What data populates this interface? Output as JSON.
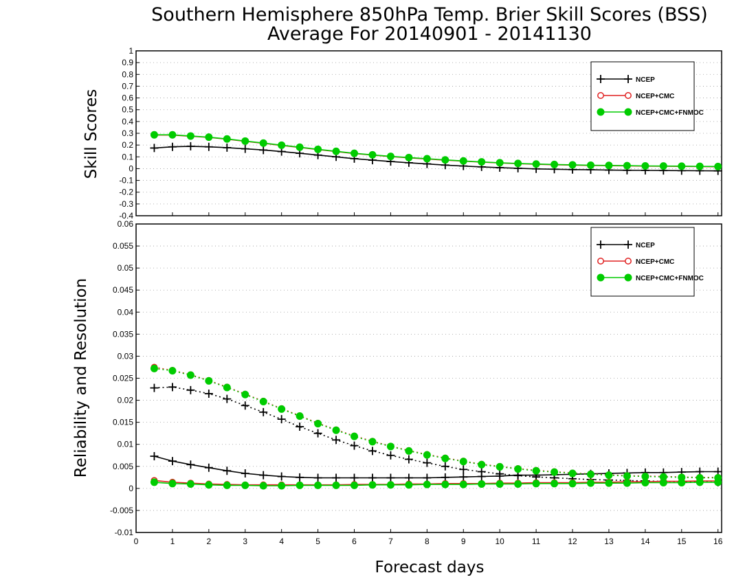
{
  "title_line1": "Southern Hemisphere 850hPa Temp. Brier Skill Scores (BSS)",
  "title_line2": "Average For 20140901 - 20141130",
  "xlabel": "Forecast days",
  "legend_entries": [
    "NCEP",
    "NCEP+CMC",
    "NCEP+CMC+FNMOC"
  ],
  "colors": {
    "ncep": "#000000",
    "ncep_cmc": "#e02020",
    "ncep_cmc_fnmoc": "#00cc00"
  },
  "chart_data": [
    {
      "type": "line",
      "title": "Southern Hemisphere 850hPa Temp. Brier Skill Scores (BSS)",
      "subtitle": "Average For 20140901 - 20141130",
      "ylabel": "Skill Scores",
      "xlim": [
        0,
        16.1
      ],
      "ylim": [
        -0.4,
        1
      ],
      "x_ticks": [
        0,
        1,
        2,
        3,
        4,
        5,
        6,
        7,
        8,
        9,
        10,
        11,
        12,
        13,
        14,
        15,
        16
      ],
      "y_ticks": [
        "-0.4",
        "-0.3",
        "-0.2",
        "-0.1",
        "0",
        "0.1",
        "0.2",
        "0.3",
        "0.4",
        "0.5",
        "0.6",
        "0.7",
        "0.8",
        "0.9",
        "1"
      ],
      "grid": true,
      "legend_position": "top-right",
      "x": [
        0.5,
        1,
        1.5,
        2,
        2.5,
        3,
        3.5,
        4,
        4.5,
        5,
        5.5,
        6,
        6.5,
        7,
        7.5,
        8,
        8.5,
        9,
        9.5,
        10,
        10.5,
        11,
        11.5,
        12,
        12.5,
        13,
        13.5,
        14,
        14.5,
        15,
        15.5,
        16
      ],
      "series": [
        {
          "name": "NCEP",
          "marker": "plus",
          "style": "solid",
          "values": [
            0.175,
            0.185,
            0.19,
            0.185,
            0.178,
            0.168,
            0.158,
            0.145,
            0.13,
            0.115,
            0.1,
            0.085,
            0.072,
            0.06,
            0.05,
            0.04,
            0.03,
            0.022,
            0.015,
            0.008,
            0.003,
            -0.002,
            -0.005,
            -0.008,
            -0.01,
            -0.012,
            -0.014,
            -0.015,
            -0.016,
            -0.017,
            -0.018,
            -0.019
          ]
        },
        {
          "name": "NCEP+CMC",
          "marker": "open-circle",
          "style": "solid",
          "values": [
            0.285,
            0.285,
            0.275,
            0.265,
            0.25,
            0.232,
            0.215,
            0.197,
            0.18,
            0.162,
            0.145,
            0.128,
            0.115,
            0.102,
            0.092,
            0.082,
            0.072,
            0.063,
            0.055,
            0.048,
            0.042,
            0.037,
            0.033,
            0.03,
            0.027,
            0.025,
            0.023,
            0.021,
            0.02,
            0.019,
            0.017,
            0.016
          ]
        },
        {
          "name": "NCEP+CMC+FNMOC",
          "marker": "filled-circle",
          "style": "solid",
          "values": [
            0.287,
            0.287,
            0.277,
            0.267,
            0.252,
            0.234,
            0.217,
            0.199,
            0.182,
            0.164,
            0.147,
            0.13,
            0.117,
            0.104,
            0.094,
            0.084,
            0.074,
            0.065,
            0.057,
            0.05,
            0.044,
            0.039,
            0.035,
            0.032,
            0.029,
            0.027,
            0.025,
            0.023,
            0.022,
            0.021,
            0.019,
            0.018
          ]
        }
      ]
    },
    {
      "type": "line",
      "ylabel": "Reliability and Resolution",
      "xlabel": "Forecast days",
      "xlim": [
        0,
        16.1
      ],
      "ylim": [
        -0.01,
        0.06
      ],
      "x_ticks": [
        0,
        1,
        2,
        3,
        4,
        5,
        6,
        7,
        8,
        9,
        10,
        11,
        12,
        13,
        14,
        15,
        16
      ],
      "y_ticks": [
        "-0.01",
        "-0.005",
        "0",
        "0.005",
        "0.01",
        "0.015",
        "0.02",
        "0.025",
        "0.03",
        "0.035",
        "0.04",
        "0.045",
        "0.05",
        "0.055",
        "0.06"
      ],
      "grid": true,
      "legend_position": "top-right",
      "x": [
        0.5,
        1,
        1.5,
        2,
        2.5,
        3,
        3.5,
        4,
        4.5,
        5,
        5.5,
        6,
        6.5,
        7,
        7.5,
        8,
        8.5,
        9,
        9.5,
        10,
        10.5,
        11,
        11.5,
        12,
        12.5,
        13,
        13.5,
        14,
        14.5,
        15,
        15.5,
        16
      ],
      "series": [
        {
          "name": "NCEP",
          "metric": "reliability",
          "marker": "plus",
          "style": "solid",
          "values": [
            0.0073,
            0.0062,
            0.0054,
            0.0047,
            0.004,
            0.0034,
            0.003,
            0.0027,
            0.0025,
            0.0024,
            0.0024,
            0.0024,
            0.0024,
            0.0024,
            0.0024,
            0.0024,
            0.0025,
            0.0026,
            0.0027,
            0.0028,
            0.003,
            0.003,
            0.0031,
            0.0032,
            0.0033,
            0.0034,
            0.0035,
            0.0036,
            0.0036,
            0.0037,
            0.0038,
            0.0038
          ]
        },
        {
          "name": "NCEP",
          "metric": "resolution",
          "marker": "plus",
          "style": "dotted",
          "values": [
            0.0228,
            0.023,
            0.0223,
            0.0215,
            0.0203,
            0.0188,
            0.0173,
            0.0157,
            0.014,
            0.0125,
            0.011,
            0.0097,
            0.0085,
            0.0075,
            0.0066,
            0.0058,
            0.005,
            0.0043,
            0.0038,
            0.0033,
            0.0029,
            0.0026,
            0.0024,
            0.0022,
            0.002,
            0.0019,
            0.0018,
            0.0017,
            0.0016,
            0.0015,
            0.0015,
            0.0014
          ]
        },
        {
          "name": "NCEP+CMC",
          "metric": "reliability",
          "marker": "open-circle",
          "style": "solid",
          "values": [
            0.0018,
            0.0014,
            0.0012,
            0.001,
            0.0009,
            0.0008,
            0.0008,
            0.0008,
            0.0008,
            0.0008,
            0.0008,
            0.0009,
            0.0009,
            0.0009,
            0.001,
            0.001,
            0.0011,
            0.0011,
            0.0011,
            0.0012,
            0.0012,
            0.0013,
            0.0013,
            0.0013,
            0.0014,
            0.0014,
            0.0015,
            0.0015,
            0.0016,
            0.0016,
            0.0017,
            0.0017
          ]
        },
        {
          "name": "NCEP+CMC",
          "metric": "resolution",
          "marker": "open-circle",
          "style": "dotted",
          "values": [
            0.0275,
            0.0268,
            0.0258,
            0.0245,
            0.023,
            0.0214,
            0.0198,
            0.0181,
            0.0165,
            0.0148,
            0.0133,
            0.0119,
            0.0107,
            0.0096,
            0.0086,
            0.0077,
            0.0069,
            0.0062,
            0.0055,
            0.005,
            0.0045,
            0.0041,
            0.0038,
            0.0035,
            0.0033,
            0.0031,
            0.0029,
            0.0028,
            0.0027,
            0.0026,
            0.0025,
            0.0025
          ]
        },
        {
          "name": "NCEP+CMC+FNMOC",
          "metric": "reliability",
          "marker": "filled-circle",
          "style": "solid",
          "values": [
            0.0014,
            0.0011,
            0.001,
            0.0008,
            0.0007,
            0.0007,
            0.0006,
            0.0006,
            0.0007,
            0.0007,
            0.0007,
            0.0007,
            0.0008,
            0.0008,
            0.0008,
            0.0009,
            0.0009,
            0.0009,
            0.001,
            0.001,
            0.001,
            0.0011,
            0.0011,
            0.0011,
            0.0012,
            0.0012,
            0.0012,
            0.0013,
            0.0013,
            0.0013,
            0.0014,
            0.0014
          ]
        },
        {
          "name": "NCEP+CMC+FNMOC",
          "metric": "resolution",
          "marker": "filled-circle",
          "style": "dotted",
          "values": [
            0.0272,
            0.0267,
            0.0257,
            0.0244,
            0.0229,
            0.0213,
            0.0197,
            0.018,
            0.0164,
            0.0147,
            0.0132,
            0.0118,
            0.0106,
            0.0095,
            0.0085,
            0.0076,
            0.0068,
            0.0061,
            0.0054,
            0.0049,
            0.0044,
            0.004,
            0.0037,
            0.0034,
            0.0032,
            0.003,
            0.0028,
            0.0027,
            0.0026,
            0.0025,
            0.0024,
            0.0024
          ]
        }
      ]
    }
  ]
}
